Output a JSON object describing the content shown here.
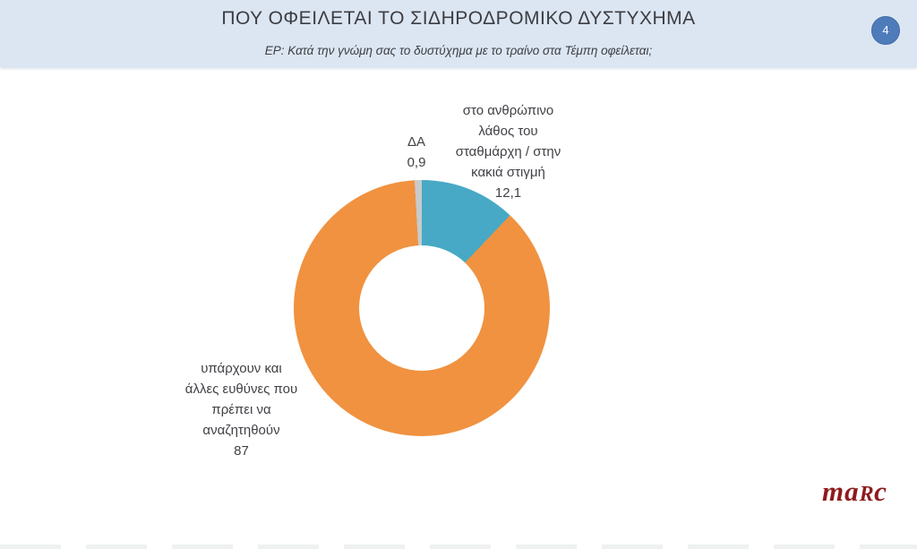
{
  "header": {
    "title": "ΠΟΥ ΟΦΕΙΛΕΤΑΙ ΤΟ ΣΙΔΗΡΟΔΡΟΜΙΚΟ ΔΥΣΤΥΧΗΜΑ",
    "subtitle": "ΕΡ: Κατά την γνώμη σας το δυστύχημα με το τραίνο στα Τέμπη οφείλεται;",
    "page_number": "4",
    "background_color": "#dce6f2",
    "badge_color": "#4e7cba"
  },
  "chart_data": {
    "type": "pie",
    "donut": true,
    "start_angle_deg": 0,
    "direction": "clockwise",
    "title": "ΠΟΥ ΟΦΕΙΛΕΤΑΙ ΤΟ ΣΙΔΗΡΟΔΡΟΜΙΚΟ ΔΥΣΤΥΧΗΜΑ",
    "slices": [
      {
        "label": "στο ανθρώπινο λάθος του σταθμάρχη / στην κακιά στιγμή",
        "value": 12.1,
        "display_value": "12,1",
        "color": "#47a9c5"
      },
      {
        "label": "υπάρχουν και άλλες ευθύνες που πρέπει να αναζητηθούν",
        "value": 87,
        "display_value": "87",
        "color": "#f09240"
      },
      {
        "label": "ΔΑ",
        "value": 0.9,
        "display_value": "0,9",
        "color": "#c8cbcb"
      }
    ],
    "legend_position": "none",
    "data_labels": "outside"
  },
  "callouts": {
    "human_error": "στο ανθρώπινο\nλάθος του\nσταθμάρχη / στην\nκακιά στιγμή\n12,1",
    "da": "ΔΑ\n0,9",
    "other_responsibilities": "υπάρχουν και\nάλλες ευθύνες που\nπρέπει να\nαναζητηθούν\n87"
  },
  "logo": {
    "prefix": "ma",
    "smallcap": "R",
    "suffix": "c",
    "color": "#8e1a1e"
  }
}
